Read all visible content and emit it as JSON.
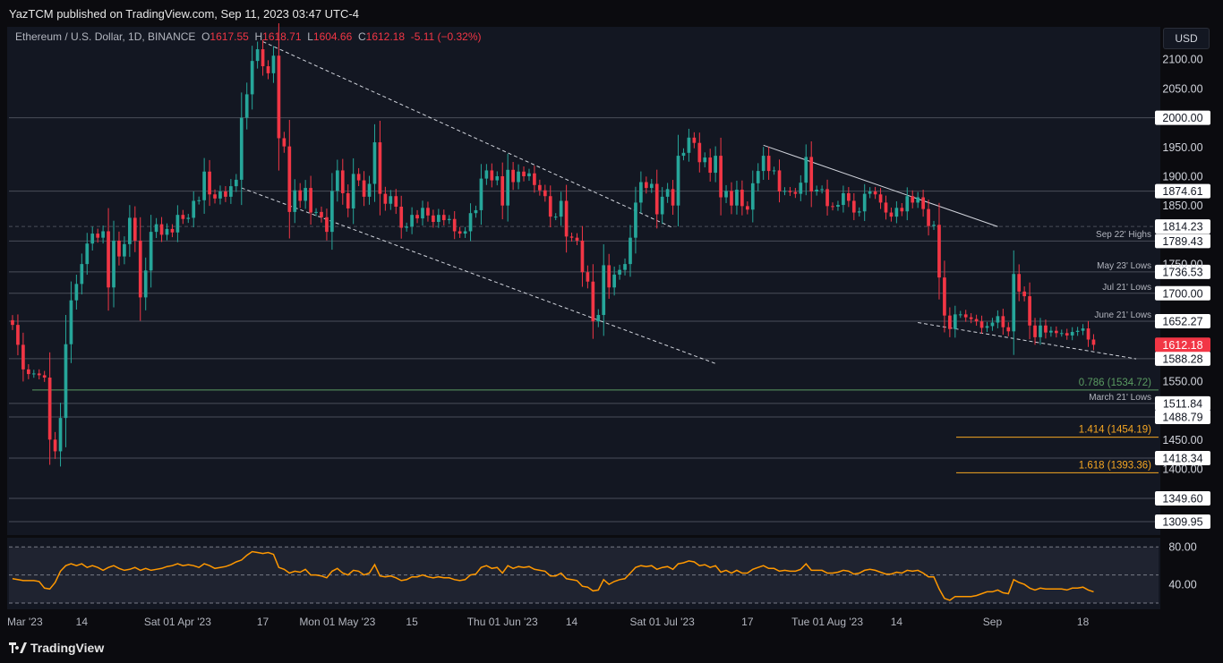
{
  "header": {
    "publisher": "YazTCM published on TradingView.com, Sep 11, 2023 03:47 UTC-4"
  },
  "legend": {
    "symbol": "Ethereum / U.S. Dollar, 1D, BINANCE",
    "o_label": "O",
    "o": "1617.55",
    "h_label": "H",
    "h": "1618.71",
    "l_label": "L",
    "l": "1604.66",
    "c_label": "C",
    "c": "1612.18",
    "change": "-5.11 (−0.32%)"
  },
  "currency_button": "USD",
  "footer": {
    "brand": "TradingView",
    "brand_icon": "tradingview-logo-icon"
  },
  "colors": {
    "up": "#26a69a",
    "down": "#f23645",
    "rsi": "#ff9800",
    "fib": "#f5a623",
    "fib786": "#5b9c62",
    "bg": "#131722"
  },
  "chart_data": {
    "type": "candlestick",
    "title": "Ethereum / U.S. Dollar, 1D, BINANCE",
    "ylim": [
      1290,
      2140
    ],
    "price_ticks": [
      "2100.00",
      "2050.00",
      "1950.00",
      "1900.00",
      "1850.00",
      "1750.00",
      "1550.00",
      "1450.00",
      "1400.00"
    ],
    "x_ticks": [
      "Mar '23",
      "14",
      "Sat 01 Apr '23",
      "17",
      "Mon 01 May '23",
      "15",
      "Thu 01 Jun '23",
      "14",
      "Sat 01 Jul '23",
      "17",
      "Tue 01 Aug '23",
      "14",
      "Sep",
      "18"
    ],
    "x_tick_days": [
      0,
      13,
      31,
      47,
      61,
      75,
      92,
      105,
      122,
      138,
      153,
      166,
      184,
      201
    ],
    "x_range_days": [
      0,
      212
    ],
    "closes": [
      1646,
      1612,
      1570,
      1562,
      1563,
      1560,
      1556,
      1450,
      1430,
      1487,
      1613,
      1688,
      1716,
      1750,
      1785,
      1802,
      1795,
      1806,
      1710,
      1790,
      1763,
      1784,
      1829,
      1790,
      1693,
      1739,
      1805,
      1818,
      1800,
      1810,
      1804,
      1834,
      1827,
      1829,
      1858,
      1859,
      1908,
      1869,
      1862,
      1874,
      1865,
      1883,
      1894,
      2000,
      2040,
      2097,
      2117,
      2088,
      2076,
      2106,
      1965,
      1951,
      1839,
      1876,
      1858,
      1880,
      1838,
      1839,
      1830,
      1805,
      1875,
      1910,
      1871,
      1845,
      1904,
      1893,
      1865,
      1887,
      1958,
      1870,
      1853,
      1866,
      1848,
      1812,
      1814,
      1834,
      1828,
      1846,
      1833,
      1822,
      1834,
      1825,
      1827,
      1806,
      1802,
      1806,
      1837,
      1842,
      1896,
      1910,
      1893,
      1900,
      1850,
      1911,
      1890,
      1908,
      1900,
      1905,
      1885,
      1876,
      1866,
      1831,
      1831,
      1858,
      1797,
      1795,
      1790,
      1736,
      1720,
      1652,
      1663,
      1748,
      1710,
      1732,
      1740,
      1750,
      1795,
      1855,
      1890,
      1880,
      1887,
      1835,
      1865,
      1878,
      1850,
      1935,
      1940,
      1966,
      1957,
      1924,
      1932,
      1906,
      1935,
      1864,
      1875,
      1850,
      1877,
      1849,
      1843,
      1888,
      1909,
      1935,
      1909,
      1910,
      1874,
      1875,
      1873,
      1870,
      1889,
      1933,
      1874,
      1877,
      1878,
      1849,
      1848,
      1851,
      1871,
      1858,
      1838,
      1840,
      1870,
      1874,
      1869,
      1855,
      1838,
      1831,
      1846,
      1840,
      1866,
      1855,
      1864,
      1844,
      1815,
      1817,
      1727,
      1662,
      1639,
      1664,
      1664,
      1659,
      1656,
      1652,
      1641,
      1644,
      1650,
      1661,
      1642,
      1635,
      1733,
      1703,
      1695,
      1645,
      1625,
      1645,
      1633,
      1636,
      1632,
      1632,
      1628,
      1634,
      1636,
      1640,
      1621,
      1612
    ],
    "reference_levels": [
      {
        "price": 2000.0,
        "label": "2000.00",
        "note": "",
        "color": "#4a4e59"
      },
      {
        "price": 1874.61,
        "label": "1874.61",
        "note": "",
        "color": "#4a4e59"
      },
      {
        "price": 1814.23,
        "label": "1814.23",
        "note": "Sep 22' Highs",
        "color": "#4a4e59",
        "dashed": true
      },
      {
        "price": 1789.43,
        "label": "1789.43",
        "note": "",
        "color": "#4a4e59"
      },
      {
        "price": 1736.53,
        "label": "1736.53",
        "note": "May 23' Lows",
        "color": "#4a4e59"
      },
      {
        "price": 1700.0,
        "label": "1700.00",
        "note": "Jul 21' Lows",
        "color": "#4a4e59"
      },
      {
        "price": 1652.27,
        "label": "1652.27",
        "note": "June 21' Lows",
        "color": "#4a4e59"
      },
      {
        "price": 1588.28,
        "label": "1588.28",
        "note": "",
        "color": "#4a4e59"
      },
      {
        "price": 1511.84,
        "label": "1511.84",
        "note": "March 21' Lows",
        "color": "#4a4e59"
      },
      {
        "price": 1488.79,
        "label": "1488.79",
        "note": "",
        "color": "#4a4e59"
      },
      {
        "price": 1418.34,
        "label": "1418.34",
        "note": "",
        "color": "#4a4e59"
      },
      {
        "price": 1349.6,
        "label": "1349.60",
        "note": "",
        "color": "#4a4e59"
      },
      {
        "price": 1309.95,
        "label": "1309.95",
        "note": "",
        "color": "#4a4e59"
      }
    ],
    "fib_levels": [
      {
        "price": 1534.72,
        "label": "0.786 (1534.72)",
        "color": "#5b9c62"
      },
      {
        "price": 1454.19,
        "label": "1.414 (1454.19)",
        "color": "#f5a623"
      },
      {
        "price": 1393.36,
        "label": "1.618 (1393.36)",
        "color": "#f5a623"
      }
    ],
    "current_price": "1612.18",
    "rsi": {
      "ticks": [
        "80.00",
        "40.00"
      ],
      "ylim": [
        20,
        85
      ],
      "upper": 80,
      "mid": 50,
      "lower": 20,
      "values": [
        46,
        45,
        44,
        44,
        44,
        43,
        36,
        35,
        42,
        54,
        60,
        62,
        60,
        62,
        58,
        60,
        58,
        55,
        58,
        60,
        57,
        55,
        56,
        58,
        55,
        57,
        55,
        56,
        57,
        59,
        60,
        62,
        60,
        61,
        60,
        58,
        62,
        60,
        57,
        58,
        59,
        61,
        64,
        66,
        71,
        75,
        74,
        73,
        74,
        72,
        58,
        56,
        52,
        54,
        53,
        56,
        50,
        50,
        49,
        47,
        54,
        57,
        52,
        50,
        55,
        54,
        50,
        52,
        61,
        49,
        48,
        49,
        47,
        44,
        45,
        48,
        48,
        50,
        48,
        47,
        48,
        47,
        47,
        45,
        44,
        45,
        50,
        51,
        58,
        60,
        57,
        58,
        52,
        60,
        57,
        59,
        58,
        59,
        56,
        55,
        54,
        49,
        49,
        52,
        46,
        45,
        44,
        38,
        37,
        33,
        34,
        45,
        40,
        43,
        45,
        46,
        52,
        58,
        60,
        59,
        60,
        56,
        58,
        59,
        56,
        62,
        63,
        65,
        64,
        60,
        61,
        58,
        60,
        53,
        55,
        52,
        55,
        52,
        52,
        56,
        58,
        60,
        57,
        57,
        54,
        55,
        54,
        54,
        56,
        62,
        55,
        55,
        55,
        52,
        52,
        53,
        55,
        54,
        51,
        52,
        55,
        56,
        55,
        53,
        51,
        51,
        53,
        52,
        55,
        54,
        55,
        52,
        48,
        48,
        35,
        25,
        23,
        27,
        27,
        27,
        27,
        28,
        30,
        32,
        32,
        34,
        31,
        30,
        45,
        42,
        40,
        36,
        34,
        36,
        35,
        35,
        35,
        35,
        34,
        36,
        36,
        37,
        34,
        32
      ]
    }
  }
}
